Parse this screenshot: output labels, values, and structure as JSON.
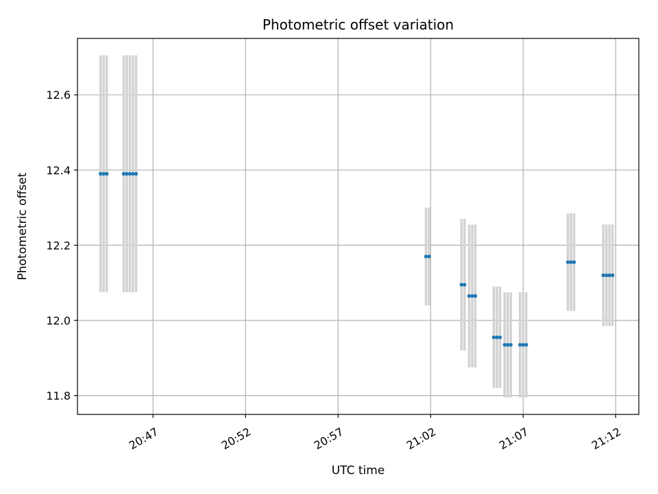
{
  "chart_data": {
    "type": "scatter",
    "title": "Photometric offset variation",
    "xlabel": "UTC time",
    "ylabel": "Photometric offset",
    "xlim": [
      "20:42:55",
      "21:13:15"
    ],
    "ylim": [
      11.75,
      12.75
    ],
    "x_ticks": [
      "20:47",
      "20:52",
      "20:57",
      "21:02",
      "21:07",
      "21:12"
    ],
    "y_ticks": [
      "11.8",
      "12.0",
      "12.2",
      "12.4",
      "12.6"
    ],
    "grid": true,
    "colors": {
      "point": "#1f77b4",
      "errorbar": "#d3d3d3",
      "grid": "#b0b0b0"
    },
    "points": [
      {
        "t": "20:44:10",
        "y": 12.39,
        "err": 0.315
      },
      {
        "t": "20:44:20",
        "y": 12.39,
        "err": 0.315
      },
      {
        "t": "20:44:30",
        "y": 12.39,
        "err": 0.315
      },
      {
        "t": "20:45:25",
        "y": 12.39,
        "err": 0.315
      },
      {
        "t": "20:45:35",
        "y": 12.39,
        "err": 0.315
      },
      {
        "t": "20:45:45",
        "y": 12.39,
        "err": 0.315
      },
      {
        "t": "20:45:55",
        "y": 12.39,
        "err": 0.315
      },
      {
        "t": "20:46:05",
        "y": 12.39,
        "err": 0.315
      },
      {
        "t": "21:01:45",
        "y": 12.17,
        "err": 0.13
      },
      {
        "t": "21:01:55",
        "y": 12.17,
        "err": 0.13
      },
      {
        "t": "21:03:40",
        "y": 12.095,
        "err": 0.175
      },
      {
        "t": "21:03:50",
        "y": 12.095,
        "err": 0.175
      },
      {
        "t": "21:04:05",
        "y": 12.065,
        "err": 0.19
      },
      {
        "t": "21:04:15",
        "y": 12.065,
        "err": 0.19
      },
      {
        "t": "21:04:25",
        "y": 12.065,
        "err": 0.19
      },
      {
        "t": "21:05:25",
        "y": 11.955,
        "err": 0.135
      },
      {
        "t": "21:05:35",
        "y": 11.955,
        "err": 0.135
      },
      {
        "t": "21:05:45",
        "y": 11.955,
        "err": 0.135
      },
      {
        "t": "21:06:00",
        "y": 11.935,
        "err": 0.14
      },
      {
        "t": "21:06:10",
        "y": 11.935,
        "err": 0.14
      },
      {
        "t": "21:06:20",
        "y": 11.935,
        "err": 0.14
      },
      {
        "t": "21:06:50",
        "y": 11.935,
        "err": 0.14
      },
      {
        "t": "21:07:00",
        "y": 11.935,
        "err": 0.14
      },
      {
        "t": "21:07:10",
        "y": 11.935,
        "err": 0.14
      },
      {
        "t": "21:09:25",
        "y": 12.155,
        "err": 0.13
      },
      {
        "t": "21:09:35",
        "y": 12.155,
        "err": 0.13
      },
      {
        "t": "21:09:45",
        "y": 12.155,
        "err": 0.13
      },
      {
        "t": "21:11:20",
        "y": 12.12,
        "err": 0.135
      },
      {
        "t": "21:11:30",
        "y": 12.12,
        "err": 0.135
      },
      {
        "t": "21:11:40",
        "y": 12.12,
        "err": 0.135
      },
      {
        "t": "21:11:50",
        "y": 12.12,
        "err": 0.135
      }
    ]
  }
}
